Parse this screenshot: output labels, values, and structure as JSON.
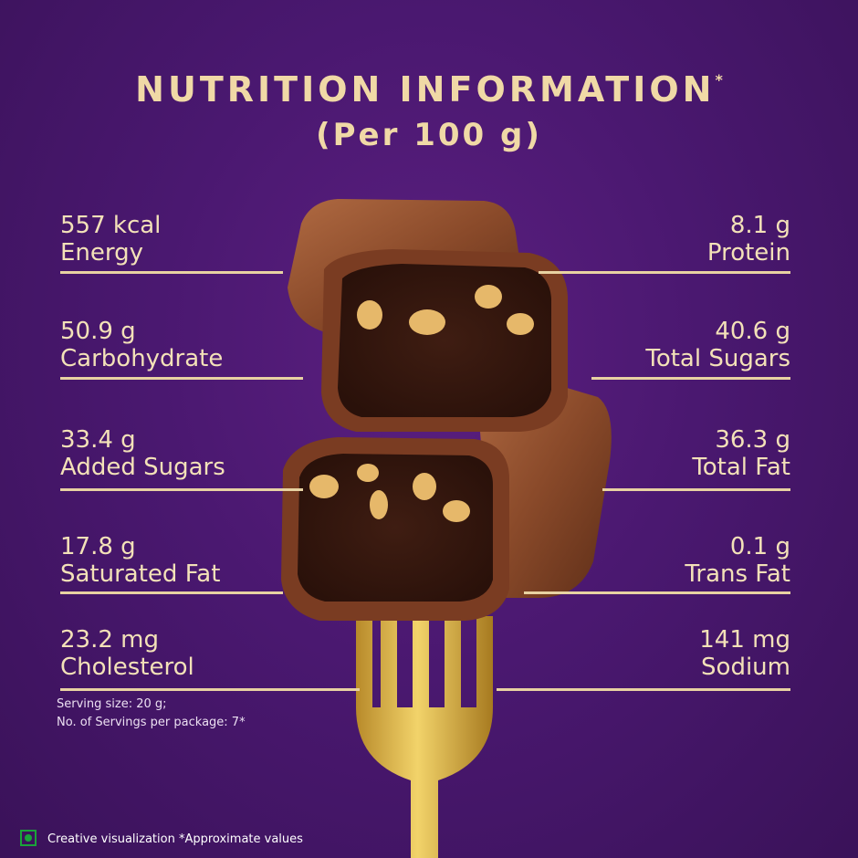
{
  "header": {
    "title": "NUTRITION INFORMATION",
    "title_mark": "*",
    "subtitle": "(Per 100 g)"
  },
  "nutrients": {
    "left": [
      {
        "value": "557 kcal",
        "label": "Energy"
      },
      {
        "value": "50.9 g",
        "label": "Carbohydrate"
      },
      {
        "value": "33.4 g",
        "label": "Added Sugars"
      },
      {
        "value": "17.8 g",
        "label": "Saturated Fat"
      },
      {
        "value": "23.2 mg",
        "label": "Cholesterol"
      }
    ],
    "right": [
      {
        "value": "8.1 g",
        "label": "Protein"
      },
      {
        "value": "40.6 g",
        "label": "Total Sugars"
      },
      {
        "value": "36.3 g",
        "label": "Total Fat"
      },
      {
        "value": "0.1 g",
        "label": "Trans Fat"
      },
      {
        "value": "141 mg",
        "label": "Sodium"
      }
    ]
  },
  "serving": {
    "size": "Serving size: 20 g;",
    "count": "No. of Servings per package: 7*"
  },
  "footer": {
    "veg_mark_icon": "veg-symbol-icon",
    "disclaimer": "Creative visualization *Approximate values"
  },
  "colors": {
    "background": "#4a1870",
    "text_gold": "#f0d9a6",
    "chocolate": "#8a4a2a",
    "fork_gold": "#e0b845"
  }
}
